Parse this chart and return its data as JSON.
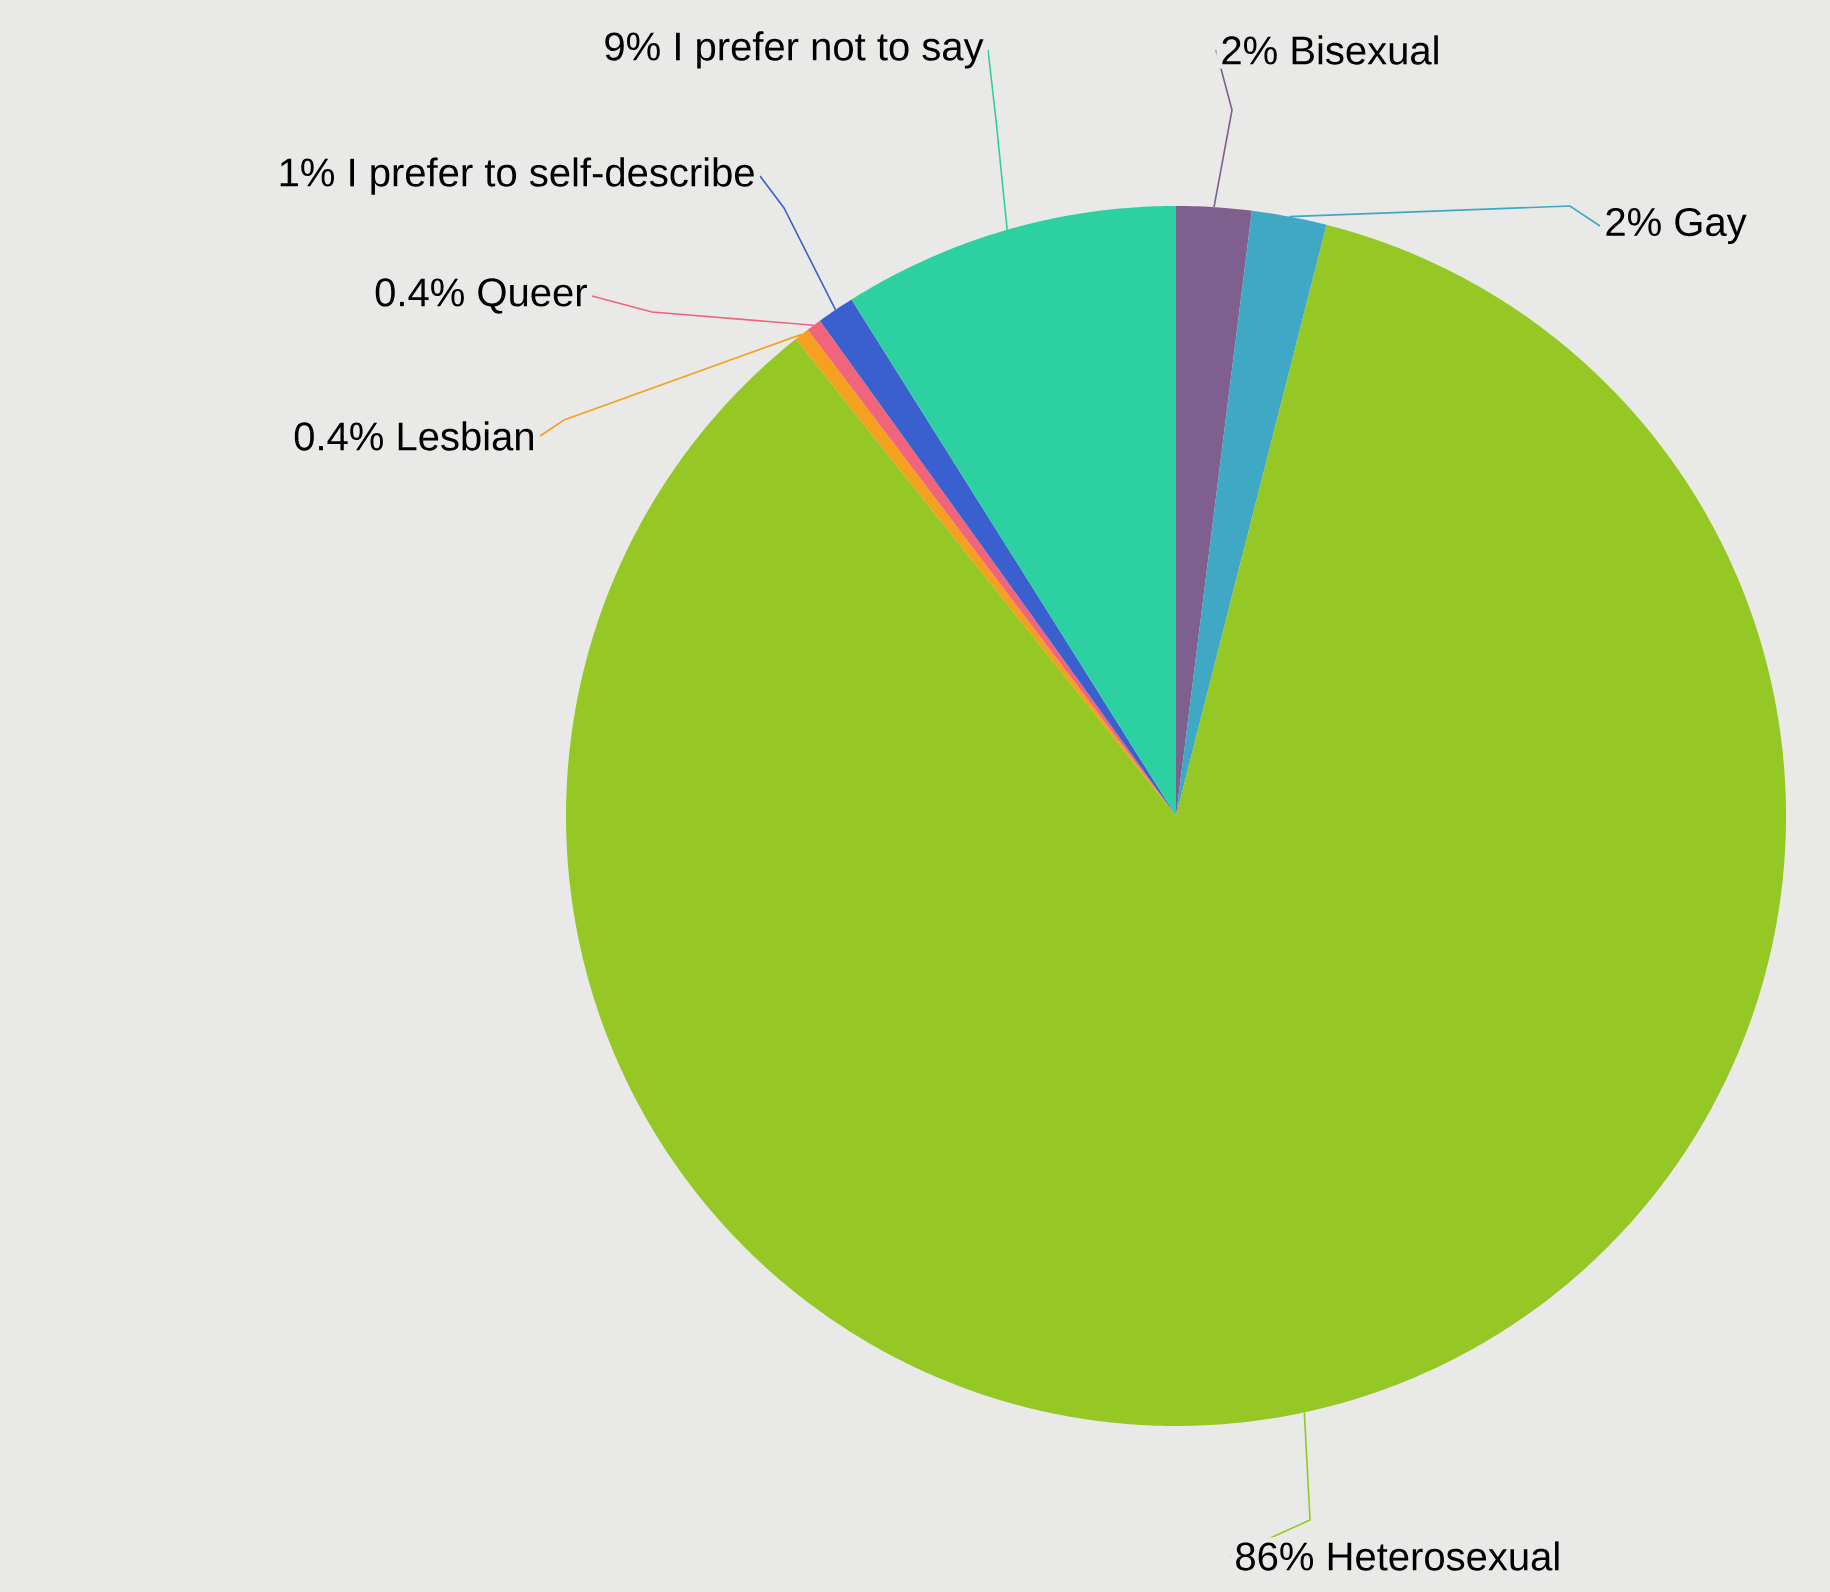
{
  "chart_data": {
    "type": "pie",
    "categories": [
      "Bisexual",
      "Gay",
      "Heterosexual",
      "Lesbian",
      "Queer",
      "I prefer to self-describe",
      "I prefer not to say"
    ],
    "values": [
      2,
      2,
      86,
      0.4,
      0.4,
      1,
      9
    ],
    "value_labels": [
      "2%",
      "2%",
      "86%",
      "0.4%",
      "0.4%",
      "1%",
      "9%"
    ],
    "colors": [
      "#7e5f8e",
      "#3fa8c4",
      "#95c825",
      "#f5a01f",
      "#f0647c",
      "#3a60d0",
      "#2dd0a0"
    ]
  }
}
